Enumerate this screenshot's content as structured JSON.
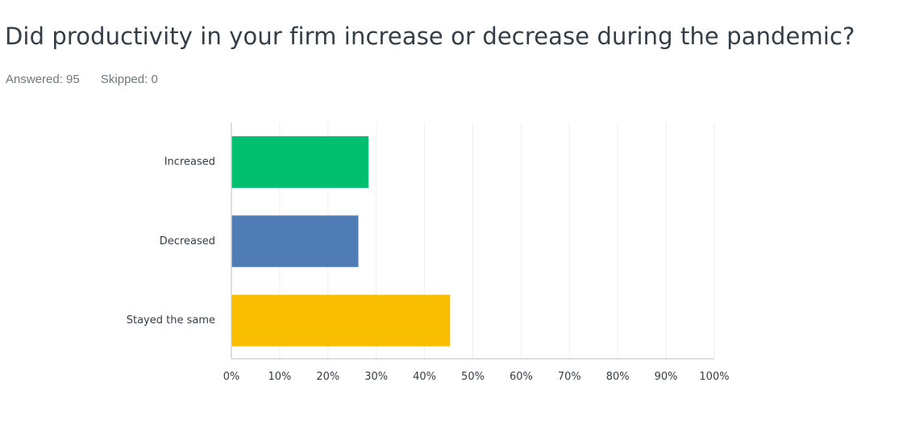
{
  "question": {
    "title": "Did productivity in your firm increase or decrease during the pandemic?"
  },
  "stats": {
    "answered": "Answered: 95",
    "skipped": "Skipped: 0"
  },
  "chart_data": {
    "type": "bar",
    "orientation": "horizontal",
    "title": "",
    "xlabel": "",
    "ylabel": "",
    "categories": [
      "Increased",
      "Decreased",
      "Stayed the same"
    ],
    "values": [
      28.4,
      26.3,
      45.3
    ],
    "colors": [
      "#00bf6f",
      "#507cb6",
      "#f9be00"
    ],
    "xlim": [
      0,
      100
    ],
    "x_ticks": [
      0,
      10,
      20,
      30,
      40,
      50,
      60,
      70,
      80,
      90,
      100
    ],
    "x_tick_labels": [
      "0%",
      "10%",
      "20%",
      "30%",
      "40%",
      "50%",
      "60%",
      "70%",
      "80%",
      "90%",
      "100%"
    ],
    "grid": true,
    "gridline_color": "#eeeeee",
    "axis_color": "#d0d4d6"
  }
}
